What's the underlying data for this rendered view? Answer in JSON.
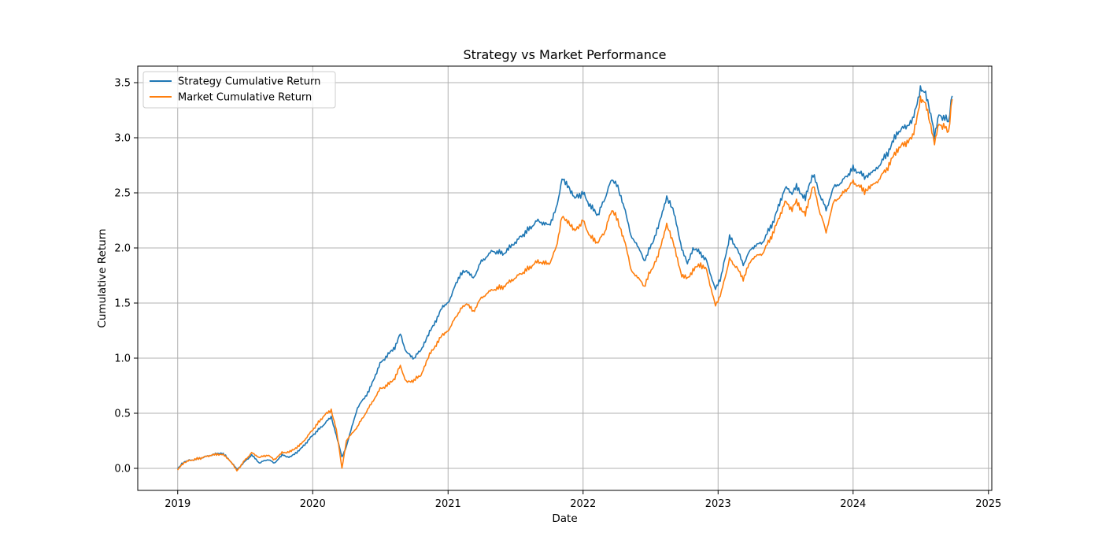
{
  "chart_data": {
    "type": "line",
    "title": "Strategy vs Market Performance",
    "xlabel": "Date",
    "ylabel": "Cumulative Return",
    "x_ticks": [
      "2019",
      "2020",
      "2021",
      "2022",
      "2023",
      "2024",
      "2025"
    ],
    "y_ticks": [
      "0.0",
      "0.5",
      "1.0",
      "1.5",
      "2.0",
      "2.5",
      "3.0",
      "3.5"
    ],
    "xlim": [
      "2018-09-15",
      "2025-01-10"
    ],
    "ylim": [
      -0.2,
      3.65
    ],
    "grid": true,
    "legend_position": "upper-left",
    "series": [
      {
        "name": "Strategy Cumulative Return",
        "color": "#1f77b4",
        "points": [
          [
            "2019-01-01",
            0.0
          ],
          [
            "2019-01-15",
            0.05
          ],
          [
            "2019-02-01",
            0.07
          ],
          [
            "2019-03-01",
            0.09
          ],
          [
            "2019-04-01",
            0.12
          ],
          [
            "2019-05-01",
            0.14
          ],
          [
            "2019-05-20",
            0.08
          ],
          [
            "2019-06-10",
            -0.01
          ],
          [
            "2019-07-01",
            0.06
          ],
          [
            "2019-07-20",
            0.12
          ],
          [
            "2019-08-10",
            0.05
          ],
          [
            "2019-09-01",
            0.08
          ],
          [
            "2019-09-20",
            0.05
          ],
          [
            "2019-10-10",
            0.12
          ],
          [
            "2019-11-01",
            0.1
          ],
          [
            "2019-12-01",
            0.18
          ],
          [
            "2020-01-01",
            0.3
          ],
          [
            "2020-02-01",
            0.4
          ],
          [
            "2020-02-20",
            0.47
          ],
          [
            "2020-03-05",
            0.3
          ],
          [
            "2020-03-20",
            0.1
          ],
          [
            "2020-04-01",
            0.2
          ],
          [
            "2020-05-01",
            0.55
          ],
          [
            "2020-06-01",
            0.7
          ],
          [
            "2020-07-01",
            0.95
          ],
          [
            "2020-07-20",
            1.02
          ],
          [
            "2020-08-10",
            1.1
          ],
          [
            "2020-08-25",
            1.22
          ],
          [
            "2020-09-10",
            1.05
          ],
          [
            "2020-10-01",
            1.0
          ],
          [
            "2020-10-20",
            1.08
          ],
          [
            "2020-11-15",
            1.25
          ],
          [
            "2020-12-15",
            1.45
          ],
          [
            "2021-01-01",
            1.5
          ],
          [
            "2021-02-01",
            1.75
          ],
          [
            "2021-02-20",
            1.8
          ],
          [
            "2021-03-10",
            1.72
          ],
          [
            "2021-04-01",
            1.88
          ],
          [
            "2021-05-01",
            1.97
          ],
          [
            "2021-06-01",
            1.95
          ],
          [
            "2021-07-01",
            2.05
          ],
          [
            "2021-08-01",
            2.15
          ],
          [
            "2021-09-01",
            2.25
          ],
          [
            "2021-10-01",
            2.2
          ],
          [
            "2021-10-20",
            2.35
          ],
          [
            "2021-11-05",
            2.62
          ],
          [
            "2021-11-20",
            2.58
          ],
          [
            "2021-12-10",
            2.45
          ],
          [
            "2022-01-01",
            2.5
          ],
          [
            "2022-01-20",
            2.38
          ],
          [
            "2022-02-10",
            2.3
          ],
          [
            "2022-03-01",
            2.45
          ],
          [
            "2022-03-20",
            2.63
          ],
          [
            "2022-04-05",
            2.55
          ],
          [
            "2022-04-25",
            2.35
          ],
          [
            "2022-05-10",
            2.1
          ],
          [
            "2022-05-25",
            2.05
          ],
          [
            "2022-06-15",
            1.88
          ],
          [
            "2022-07-01",
            2.0
          ],
          [
            "2022-07-20",
            2.15
          ],
          [
            "2022-08-15",
            2.47
          ],
          [
            "2022-09-01",
            2.35
          ],
          [
            "2022-09-25",
            2.0
          ],
          [
            "2022-10-10",
            1.85
          ],
          [
            "2022-10-25",
            2.0
          ],
          [
            "2022-11-15",
            1.95
          ],
          [
            "2022-12-01",
            1.88
          ],
          [
            "2022-12-25",
            1.62
          ],
          [
            "2023-01-10",
            1.75
          ],
          [
            "2023-02-01",
            2.1
          ],
          [
            "2023-02-20",
            2.0
          ],
          [
            "2023-03-10",
            1.85
          ],
          [
            "2023-04-01",
            2.0
          ],
          [
            "2023-05-01",
            2.05
          ],
          [
            "2023-06-01",
            2.25
          ],
          [
            "2023-07-01",
            2.55
          ],
          [
            "2023-07-20",
            2.5
          ],
          [
            "2023-08-01",
            2.55
          ],
          [
            "2023-08-25",
            2.45
          ],
          [
            "2023-09-15",
            2.68
          ],
          [
            "2023-10-01",
            2.5
          ],
          [
            "2023-10-20",
            2.35
          ],
          [
            "2023-11-10",
            2.55
          ],
          [
            "2023-12-01",
            2.6
          ],
          [
            "2024-01-01",
            2.72
          ],
          [
            "2024-02-01",
            2.65
          ],
          [
            "2024-03-01",
            2.7
          ],
          [
            "2024-04-01",
            2.85
          ],
          [
            "2024-05-01",
            3.05
          ],
          [
            "2024-05-20",
            3.1
          ],
          [
            "2024-06-10",
            3.15
          ],
          [
            "2024-07-01",
            3.45
          ],
          [
            "2024-07-15",
            3.4
          ],
          [
            "2024-08-01",
            3.15
          ],
          [
            "2024-08-08",
            3.02
          ],
          [
            "2024-08-20",
            3.2
          ],
          [
            "2024-09-05",
            3.18
          ],
          [
            "2024-09-15",
            3.15
          ],
          [
            "2024-09-25",
            3.38
          ]
        ]
      },
      {
        "name": "Market Cumulative Return",
        "color": "#ff7f0e",
        "points": [
          [
            "2019-01-01",
            -0.01
          ],
          [
            "2019-01-15",
            0.04
          ],
          [
            "2019-02-01",
            0.07
          ],
          [
            "2019-03-01",
            0.09
          ],
          [
            "2019-04-01",
            0.12
          ],
          [
            "2019-05-01",
            0.13
          ],
          [
            "2019-05-20",
            0.08
          ],
          [
            "2019-06-10",
            -0.02
          ],
          [
            "2019-07-01",
            0.07
          ],
          [
            "2019-07-20",
            0.14
          ],
          [
            "2019-08-10",
            0.1
          ],
          [
            "2019-09-01",
            0.12
          ],
          [
            "2019-09-20",
            0.08
          ],
          [
            "2019-10-10",
            0.14
          ],
          [
            "2019-11-01",
            0.15
          ],
          [
            "2019-12-01",
            0.22
          ],
          [
            "2020-01-01",
            0.35
          ],
          [
            "2020-02-01",
            0.48
          ],
          [
            "2020-02-20",
            0.53
          ],
          [
            "2020-03-05",
            0.35
          ],
          [
            "2020-03-20",
            0.0
          ],
          [
            "2020-04-01",
            0.25
          ],
          [
            "2020-05-01",
            0.38
          ],
          [
            "2020-06-01",
            0.55
          ],
          [
            "2020-07-01",
            0.72
          ],
          [
            "2020-07-20",
            0.75
          ],
          [
            "2020-08-10",
            0.82
          ],
          [
            "2020-08-25",
            0.93
          ],
          [
            "2020-09-10",
            0.78
          ],
          [
            "2020-10-01",
            0.8
          ],
          [
            "2020-10-20",
            0.85
          ],
          [
            "2020-11-15",
            1.05
          ],
          [
            "2020-12-15",
            1.2
          ],
          [
            "2021-01-01",
            1.25
          ],
          [
            "2021-02-01",
            1.43
          ],
          [
            "2021-02-20",
            1.5
          ],
          [
            "2021-03-10",
            1.42
          ],
          [
            "2021-04-01",
            1.55
          ],
          [
            "2021-05-01",
            1.62
          ],
          [
            "2021-06-01",
            1.65
          ],
          [
            "2021-07-01",
            1.73
          ],
          [
            "2021-08-01",
            1.8
          ],
          [
            "2021-09-01",
            1.88
          ],
          [
            "2021-10-01",
            1.85
          ],
          [
            "2021-10-20",
            2.0
          ],
          [
            "2021-11-05",
            2.28
          ],
          [
            "2021-11-20",
            2.25
          ],
          [
            "2021-12-10",
            2.15
          ],
          [
            "2022-01-01",
            2.25
          ],
          [
            "2022-01-20",
            2.1
          ],
          [
            "2022-02-10",
            2.05
          ],
          [
            "2022-03-01",
            2.15
          ],
          [
            "2022-03-20",
            2.35
          ],
          [
            "2022-04-05",
            2.25
          ],
          [
            "2022-04-25",
            2.05
          ],
          [
            "2022-05-10",
            1.8
          ],
          [
            "2022-05-25",
            1.75
          ],
          [
            "2022-06-15",
            1.65
          ],
          [
            "2022-07-01",
            1.78
          ],
          [
            "2022-07-20",
            1.9
          ],
          [
            "2022-08-15",
            2.22
          ],
          [
            "2022-09-01",
            2.05
          ],
          [
            "2022-09-25",
            1.75
          ],
          [
            "2022-10-10",
            1.72
          ],
          [
            "2022-10-25",
            1.8
          ],
          [
            "2022-11-15",
            1.85
          ],
          [
            "2022-12-01",
            1.8
          ],
          [
            "2022-12-25",
            1.47
          ],
          [
            "2023-01-10",
            1.6
          ],
          [
            "2023-02-01",
            1.9
          ],
          [
            "2023-02-20",
            1.82
          ],
          [
            "2023-03-10",
            1.72
          ],
          [
            "2023-04-01",
            1.9
          ],
          [
            "2023-05-01",
            1.95
          ],
          [
            "2023-06-01",
            2.15
          ],
          [
            "2023-07-01",
            2.42
          ],
          [
            "2023-07-20",
            2.35
          ],
          [
            "2023-08-01",
            2.42
          ],
          [
            "2023-08-25",
            2.3
          ],
          [
            "2023-09-15",
            2.58
          ],
          [
            "2023-10-01",
            2.35
          ],
          [
            "2023-10-20",
            2.15
          ],
          [
            "2023-11-10",
            2.42
          ],
          [
            "2023-12-01",
            2.48
          ],
          [
            "2024-01-01",
            2.6
          ],
          [
            "2024-02-01",
            2.52
          ],
          [
            "2024-03-01",
            2.58
          ],
          [
            "2024-04-01",
            2.72
          ],
          [
            "2024-05-01",
            2.9
          ],
          [
            "2024-05-20",
            2.95
          ],
          [
            "2024-06-10",
            3.0
          ],
          [
            "2024-07-01",
            3.35
          ],
          [
            "2024-07-15",
            3.3
          ],
          [
            "2024-08-01",
            3.05
          ],
          [
            "2024-08-08",
            2.95
          ],
          [
            "2024-08-20",
            3.12
          ],
          [
            "2024-09-05",
            3.1
          ],
          [
            "2024-09-15",
            3.05
          ],
          [
            "2024-09-25",
            3.35
          ]
        ]
      }
    ]
  }
}
